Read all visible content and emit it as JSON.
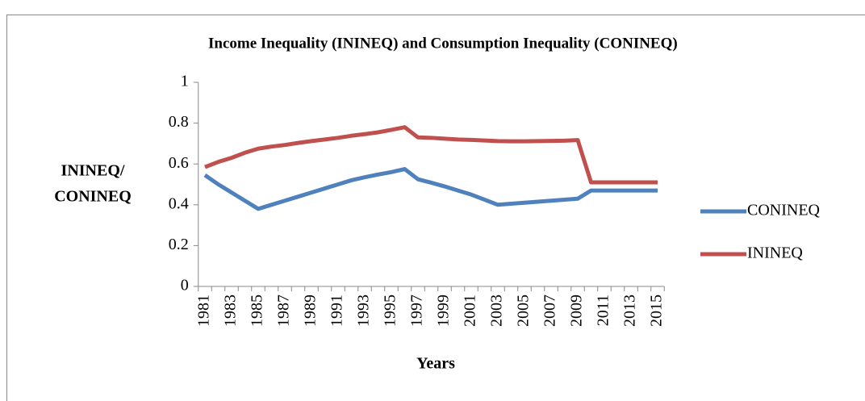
{
  "chart_data": {
    "type": "line",
    "title": "Income Inequality (ININEQ) and Consumption Inequality (CONINEQ)",
    "ylabel": [
      "ININEQ/",
      "CONINEQ"
    ],
    "xlabel": "Years",
    "categories": [
      "1981",
      null,
      "1983",
      null,
      "1985",
      null,
      "1987",
      null,
      "1989",
      null,
      "1991",
      null,
      "1993",
      null,
      "1995",
      null,
      "1997",
      null,
      "1999",
      null,
      "2001",
      null,
      "2003",
      null,
      "2005",
      null,
      "2007",
      null,
      "2009",
      null,
      "2011",
      null,
      "2013",
      null,
      "2015"
    ],
    "series": [
      {
        "name": "CONINEQ",
        "color": "#4f81bd",
        "values": [
          0.545,
          0.5,
          0.46,
          0.42,
          0.38,
          0.4,
          0.42,
          0.44,
          0.46,
          0.48,
          0.5,
          0.52,
          0.535,
          0.548,
          0.56,
          0.575,
          0.525,
          0.508,
          0.49,
          0.47,
          0.45,
          0.425,
          0.4,
          0.405,
          0.41,
          0.415,
          0.42,
          0.425,
          0.43,
          0.47,
          0.47,
          0.47,
          0.47,
          0.47,
          0.47
        ]
      },
      {
        "name": "ININEQ",
        "color": "#c0504d",
        "values": [
          0.585,
          0.61,
          0.63,
          0.655,
          0.675,
          0.685,
          0.693,
          0.703,
          0.712,
          0.72,
          0.728,
          0.738,
          0.746,
          0.755,
          0.767,
          0.78,
          0.73,
          0.728,
          0.724,
          0.72,
          0.718,
          0.715,
          0.712,
          0.711,
          0.711,
          0.712,
          0.713,
          0.714,
          0.717,
          0.51,
          0.51,
          0.51,
          0.51,
          0.51,
          0.51
        ]
      }
    ],
    "ylim": [
      0,
      1
    ],
    "yticks": [
      0,
      0.2,
      0.4,
      0.6,
      0.8,
      1
    ],
    "legend": "right"
  }
}
